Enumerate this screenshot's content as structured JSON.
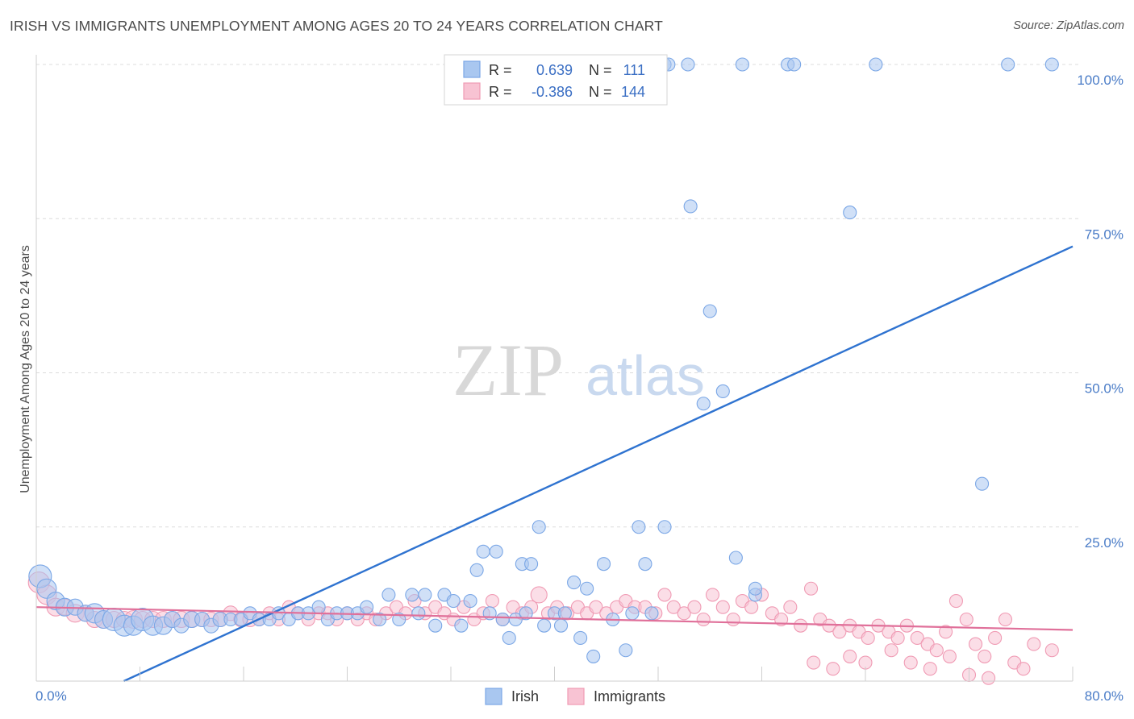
{
  "header": {
    "title": "IRISH VS IMMIGRANTS UNEMPLOYMENT AMONG AGES 20 TO 24 YEARS CORRELATION CHART",
    "source": "Source: ZipAtlas.com"
  },
  "watermark": {
    "zip": "ZIP",
    "atlas": "atlas"
  },
  "chart_data": {
    "type": "scatter",
    "ylabel": "Unemployment Among Ages 20 to 24 years",
    "xlim": [
      0,
      80
    ],
    "ylim": [
      0,
      100
    ],
    "y_tick_labels": [
      {
        "value": 25,
        "label": "25.0%"
      },
      {
        "value": 50,
        "label": "50.0%"
      },
      {
        "value": 75,
        "label": "75.0%"
      },
      {
        "value": 100,
        "label": "100.0%"
      }
    ],
    "x_tick_labels": [
      {
        "value": 0,
        "label": "0.0%"
      },
      {
        "value": 80,
        "label": "80.0%"
      }
    ],
    "legend_stats": [
      {
        "series": "Irish",
        "r_label": "R =",
        "r_value": "0.639",
        "n_label": "N =",
        "n_value": "111"
      },
      {
        "series": "Immigrants",
        "r_label": "R =",
        "r_value": "-0.386",
        "n_label": "N =",
        "n_value": "144"
      }
    ],
    "series": [
      {
        "name": "Irish",
        "color": "#7ba7e6",
        "fill": "#a9c7f0",
        "trend_color": "#2f73d0",
        "trend": {
          "x": [
            0,
            80
          ],
          "y": [
            -6.5,
            70.5
          ]
        },
        "points": [
          [
            0.3,
            17,
            14
          ],
          [
            0.8,
            15,
            12
          ],
          [
            1.5,
            13,
            11
          ],
          [
            2.2,
            12,
            11
          ],
          [
            3.0,
            12,
            10
          ],
          [
            3.8,
            11,
            10
          ],
          [
            4.5,
            11,
            12
          ],
          [
            5.2,
            10,
            11
          ],
          [
            6.0,
            10,
            14
          ],
          [
            6.8,
            9,
            13
          ],
          [
            7.5,
            9,
            12
          ],
          [
            8.2,
            10,
            14
          ],
          [
            9.0,
            9,
            12
          ],
          [
            9.8,
            9,
            11
          ],
          [
            10.5,
            10,
            10
          ],
          [
            11.2,
            9,
            9
          ],
          [
            12.0,
            10,
            10
          ],
          [
            12.8,
            10,
            9
          ],
          [
            13.5,
            9,
            9
          ],
          [
            14.2,
            10,
            9
          ],
          [
            15.0,
            10,
            8
          ],
          [
            15.8,
            10,
            8
          ],
          [
            16.5,
            11,
            8
          ],
          [
            17.2,
            10,
            8
          ],
          [
            18.0,
            10,
            8
          ],
          [
            18.7,
            11,
            8
          ],
          [
            19.5,
            10,
            8
          ],
          [
            20.2,
            11,
            8
          ],
          [
            21.0,
            11,
            8
          ],
          [
            21.8,
            12,
            8
          ],
          [
            22.5,
            10,
            8
          ],
          [
            23.2,
            11,
            8
          ],
          [
            24.0,
            11,
            8
          ],
          [
            24.8,
            11,
            8
          ],
          [
            25.5,
            12,
            8
          ],
          [
            26.5,
            10,
            8
          ],
          [
            27.2,
            14,
            8
          ],
          [
            28.0,
            10,
            8
          ],
          [
            29.0,
            14,
            8
          ],
          [
            29.5,
            11,
            8
          ],
          [
            30.0,
            14,
            8
          ],
          [
            30.8,
            9,
            8
          ],
          [
            31.5,
            14,
            8
          ],
          [
            32.2,
            13,
            8
          ],
          [
            32.8,
            9,
            8
          ],
          [
            33.5,
            13,
            8
          ],
          [
            34.0,
            18,
            8
          ],
          [
            34.5,
            21,
            8
          ],
          [
            35.0,
            11,
            8
          ],
          [
            35.5,
            21,
            8
          ],
          [
            36.0,
            10,
            8
          ],
          [
            36.5,
            7,
            8
          ],
          [
            37.0,
            10,
            8
          ],
          [
            37.5,
            19,
            8
          ],
          [
            37.8,
            11,
            8
          ],
          [
            38.2,
            19,
            8
          ],
          [
            38.8,
            25,
            8
          ],
          [
            39.2,
            9,
            8
          ],
          [
            40.0,
            11,
            8
          ],
          [
            40.5,
            9,
            8
          ],
          [
            40.8,
            11,
            8
          ],
          [
            41.5,
            16,
            8
          ],
          [
            42.0,
            7,
            8
          ],
          [
            42.5,
            15,
            8
          ],
          [
            43.0,
            4,
            8
          ],
          [
            43.8,
            19,
            8
          ],
          [
            44.5,
            10,
            8
          ],
          [
            45.5,
            5,
            8
          ],
          [
            46.0,
            11,
            8
          ],
          [
            46.5,
            25,
            8
          ],
          [
            47.0,
            19,
            8
          ],
          [
            47.5,
            11,
            8
          ],
          [
            48.5,
            25,
            8
          ],
          [
            50.5,
            77,
            8
          ],
          [
            51.5,
            45,
            8
          ],
          [
            52.0,
            60,
            8
          ],
          [
            53.0,
            47,
            8
          ],
          [
            54.0,
            20,
            8
          ],
          [
            55.5,
            14,
            8
          ],
          [
            55.5,
            15,
            8
          ],
          [
            48.5,
            100,
            8
          ],
          [
            48.8,
            100,
            8
          ],
          [
            50.3,
            100,
            8
          ],
          [
            54.5,
            100,
            8
          ],
          [
            58.0,
            100,
            8
          ],
          [
            58.5,
            100,
            8
          ],
          [
            64.8,
            100,
            8
          ],
          [
            75.0,
            100,
            8
          ],
          [
            78.4,
            100,
            8
          ],
          [
            62.8,
            76,
            8
          ],
          [
            73.0,
            32,
            8
          ]
        ]
      },
      {
        "name": "Immigrants",
        "color": "#f09bb4",
        "fill": "#f8c3d3",
        "trend_color": "#e0709a",
        "trend": {
          "x": [
            0,
            80
          ],
          "y": [
            12,
            8.3
          ]
        },
        "points": [
          [
            0.2,
            16,
            13
          ],
          [
            0.8,
            14,
            12
          ],
          [
            1.5,
            12,
            11
          ],
          [
            2.2,
            12,
            10
          ],
          [
            3.0,
            11,
            11
          ],
          [
            3.8,
            11,
            10
          ],
          [
            4.5,
            10,
            10
          ],
          [
            5.2,
            10,
            11
          ],
          [
            6.0,
            10,
            10
          ],
          [
            6.8,
            10,
            10
          ],
          [
            7.5,
            10,
            11
          ],
          [
            8.2,
            10,
            10
          ],
          [
            9.0,
            10,
            10
          ],
          [
            9.8,
            10,
            10
          ],
          [
            10.5,
            10,
            10
          ],
          [
            11.2,
            10,
            10
          ],
          [
            12.0,
            10,
            10
          ],
          [
            12.8,
            10,
            9
          ],
          [
            13.5,
            10,
            9
          ],
          [
            14.2,
            10,
            9
          ],
          [
            15.0,
            11,
            9
          ],
          [
            15.8,
            10,
            9
          ],
          [
            16.5,
            10,
            9
          ],
          [
            17.2,
            10,
            8
          ],
          [
            18.0,
            11,
            8
          ],
          [
            18.7,
            10,
            8
          ],
          [
            19.5,
            12,
            8
          ],
          [
            20.2,
            11,
            8
          ],
          [
            21.0,
            10,
            8
          ],
          [
            21.8,
            11,
            8
          ],
          [
            22.5,
            11,
            8
          ],
          [
            23.2,
            10,
            8
          ],
          [
            24.0,
            11,
            8
          ],
          [
            24.8,
            10,
            8
          ],
          [
            25.5,
            11,
            8
          ],
          [
            26.2,
            10,
            8
          ],
          [
            27.0,
            11,
            8
          ],
          [
            27.8,
            12,
            8
          ],
          [
            28.5,
            11,
            8
          ],
          [
            29.2,
            13,
            8
          ],
          [
            30.0,
            11,
            8
          ],
          [
            30.8,
            12,
            8
          ],
          [
            31.5,
            11,
            8
          ],
          [
            32.2,
            10,
            8
          ],
          [
            33.0,
            12,
            8
          ],
          [
            33.8,
            10,
            8
          ],
          [
            34.5,
            11,
            8
          ],
          [
            35.2,
            13,
            8
          ],
          [
            36.0,
            10,
            8
          ],
          [
            36.8,
            12,
            8
          ],
          [
            37.5,
            11,
            8
          ],
          [
            38.2,
            12,
            8
          ],
          [
            38.8,
            14,
            10
          ],
          [
            39.5,
            11,
            8
          ],
          [
            40.2,
            12,
            8
          ],
          [
            41.0,
            11,
            8
          ],
          [
            41.8,
            12,
            8
          ],
          [
            42.5,
            11,
            8
          ],
          [
            43.2,
            12,
            8
          ],
          [
            44.0,
            11,
            8
          ],
          [
            44.8,
            12,
            8
          ],
          [
            45.5,
            13,
            8
          ],
          [
            46.2,
            12,
            8
          ],
          [
            47.0,
            12,
            8
          ],
          [
            47.8,
            11,
            8
          ],
          [
            48.5,
            14,
            8
          ],
          [
            49.2,
            12,
            8
          ],
          [
            50.0,
            11,
            8
          ],
          [
            50.8,
            12,
            8
          ],
          [
            51.5,
            10,
            8
          ],
          [
            52.2,
            14,
            8
          ],
          [
            53.0,
            12,
            8
          ],
          [
            53.8,
            10,
            8
          ],
          [
            54.5,
            13,
            8
          ],
          [
            55.2,
            12,
            8
          ],
          [
            56.0,
            14,
            8
          ],
          [
            56.8,
            11,
            8
          ],
          [
            57.5,
            10,
            8
          ],
          [
            58.2,
            12,
            8
          ],
          [
            59.0,
            9,
            8
          ],
          [
            59.8,
            15,
            8
          ],
          [
            60.5,
            10,
            8
          ],
          [
            61.2,
            9,
            8
          ],
          [
            62.0,
            8,
            8
          ],
          [
            62.8,
            9,
            8
          ],
          [
            63.5,
            8,
            8
          ],
          [
            64.2,
            7,
            8
          ],
          [
            65.0,
            9,
            8
          ],
          [
            65.8,
            8,
            8
          ],
          [
            66.5,
            7,
            8
          ],
          [
            67.2,
            9,
            8
          ],
          [
            68.0,
            7,
            8
          ],
          [
            68.8,
            6,
            8
          ],
          [
            69.5,
            5,
            8
          ],
          [
            70.2,
            8,
            8
          ],
          [
            71.0,
            13,
            8
          ],
          [
            71.8,
            10,
            8
          ],
          [
            72.5,
            6,
            8
          ],
          [
            73.2,
            4,
            8
          ],
          [
            74.0,
            7,
            8
          ],
          [
            74.8,
            10,
            8
          ],
          [
            75.5,
            3,
            8
          ],
          [
            76.2,
            2,
            8
          ],
          [
            77.0,
            6,
            8
          ],
          [
            78.4,
            5,
            8
          ],
          [
            60.0,
            3,
            8
          ],
          [
            61.5,
            2,
            8
          ],
          [
            62.8,
            4,
            8
          ],
          [
            64.0,
            3,
            8
          ],
          [
            66.0,
            5,
            8
          ],
          [
            67.5,
            3,
            8
          ],
          [
            69.0,
            2,
            8
          ],
          [
            70.5,
            4,
            8
          ],
          [
            72.0,
            1,
            8
          ],
          [
            73.5,
            0.5,
            8
          ]
        ]
      }
    ]
  },
  "bottom_legend": [
    {
      "label": "Irish",
      "color": "#a9c7f0",
      "border": "#7ba7e6"
    },
    {
      "label": "Immigrants",
      "color": "#f8c3d3",
      "border": "#f09bb4"
    }
  ]
}
